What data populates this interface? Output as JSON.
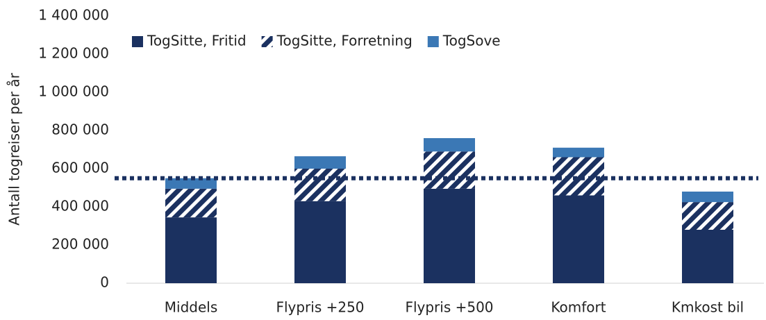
{
  "chart_data": {
    "type": "stacked_bar",
    "y_axis_label": "Antall togreiser per år",
    "categories": [
      "Middels",
      "Flypris +250",
      "Flypris +500",
      "Komfort",
      "Kmkost bil"
    ],
    "series": [
      {
        "name": "TogSitte, Fritid",
        "color": "#1b3160",
        "pattern": "solid",
        "values": [
          345000,
          430000,
          495000,
          460000,
          280000
        ]
      },
      {
        "name": "TogSitte, Forretning",
        "color": "#1b3160",
        "pattern": "hatch",
        "values": [
          150000,
          170000,
          195000,
          200000,
          145000
        ]
      },
      {
        "name": "TogSove",
        "color": "#3b78b5",
        "pattern": "solid",
        "values": [
          55000,
          65000,
          70000,
          50000,
          55000
        ]
      }
    ],
    "reference_line": 550000,
    "reference_color": "#1b3160",
    "ylim": [
      0,
      1400000
    ],
    "yticks": [
      0,
      {
        "value": 200000,
        "label": "200 000"
      },
      {
        "value": 400000,
        "label": "400 000"
      },
      {
        "value": 600000,
        "label": "600 000"
      },
      {
        "value": 800000,
        "label": "800 000"
      },
      {
        "value": 1000000,
        "label": "1 000 000"
      },
      {
        "value": 1200000,
        "label": "1 200 000"
      },
      {
        "value": 1400000,
        "label": "1 400 000"
      }
    ],
    "legend": "top"
  }
}
